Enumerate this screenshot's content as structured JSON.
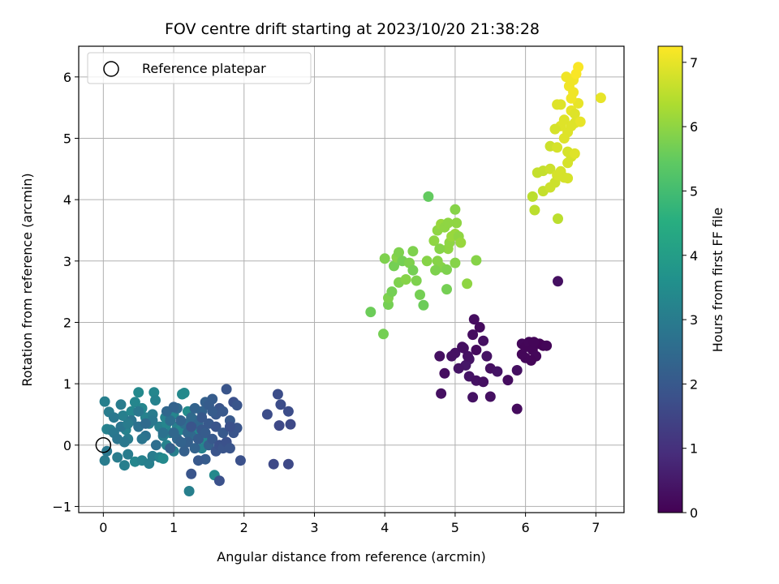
{
  "chart_data": {
    "type": "scatter",
    "title": "FOV centre drift starting at 2023/10/20 21:38:28",
    "xlabel": "Angular distance from reference (arcmin)",
    "ylabel": "Rotation from reference (arcmin)",
    "colorbar_label": "Hours from first FF file",
    "colormap": "viridis",
    "xlim": [
      -0.35,
      7.4
    ],
    "ylim": [
      -1.1,
      6.5
    ],
    "clim": [
      0,
      7.25
    ],
    "xticks": [
      0,
      1,
      2,
      3,
      4,
      5,
      6,
      7
    ],
    "yticks": [
      -1,
      0,
      1,
      2,
      3,
      4,
      5,
      6
    ],
    "cticks": [
      0,
      1,
      2,
      3,
      4,
      5,
      6,
      7
    ],
    "grid": true,
    "legend_position": "top-left",
    "legend": [
      {
        "label": "Reference platepar",
        "marker": "open-circle",
        "x": 0,
        "y": 0
      }
    ],
    "points": [
      [
        5.0,
        1.5,
        0.35
      ],
      [
        5.1,
        1.6,
        0.3
      ],
      [
        5.2,
        1.4,
        0.4
      ],
      [
        5.3,
        1.55,
        0.2
      ],
      [
        5.25,
        1.8,
        0.25
      ],
      [
        5.4,
        1.7,
        0.3
      ],
      [
        5.35,
        1.92,
        0.2
      ],
      [
        5.27,
        2.05,
        0.25
      ],
      [
        5.45,
        1.45,
        0.35
      ],
      [
        5.5,
        1.25,
        0.3
      ],
      [
        5.6,
        1.2,
        0.4
      ],
      [
        5.15,
        1.3,
        0.45
      ],
      [
        5.05,
        1.25,
        0.4
      ],
      [
        4.95,
        1.45,
        0.35
      ],
      [
        4.78,
        1.45,
        0.3
      ],
      [
        4.85,
        1.17,
        0.25
      ],
      [
        4.8,
        0.84,
        0.3
      ],
      [
        5.25,
        0.78,
        0.35
      ],
      [
        5.5,
        0.79,
        0.3
      ],
      [
        5.2,
        1.12,
        0.4
      ],
      [
        5.3,
        1.05,
        0.35
      ],
      [
        5.4,
        1.03,
        0.3
      ],
      [
        5.75,
        1.06,
        0.25
      ],
      [
        5.88,
        1.22,
        0.3
      ],
      [
        5.88,
        0.59,
        0.2
      ],
      [
        5.95,
        1.65,
        0.15
      ],
      [
        6.0,
        1.6,
        0.1
      ],
      [
        6.05,
        1.68,
        0.12
      ],
      [
        6.1,
        1.55,
        0.1
      ],
      [
        6.15,
        1.45,
        0.15
      ],
      [
        6.08,
        1.38,
        0.1
      ],
      [
        6.0,
        1.42,
        0.12
      ],
      [
        6.2,
        1.65,
        0.08
      ],
      [
        6.25,
        1.62,
        0.05
      ],
      [
        6.3,
        1.62,
        0.1
      ],
      [
        5.95,
        1.48,
        0.12
      ],
      [
        6.12,
        1.68,
        0.1
      ],
      [
        6.46,
        2.67,
        0.3
      ],
      [
        5.18,
        1.45,
        0.35
      ],
      [
        5.12,
        1.58,
        0.3
      ],
      [
        3.8,
        2.17,
        5.6
      ],
      [
        3.98,
        1.81,
        5.7
      ],
      [
        4.05,
        2.29,
        5.7
      ],
      [
        4.05,
        2.4,
        5.8
      ],
      [
        4.1,
        2.5,
        5.7
      ],
      [
        4.0,
        3.04,
        5.8
      ],
      [
        4.13,
        2.92,
        5.7
      ],
      [
        4.17,
        3.06,
        5.9
      ],
      [
        4.2,
        3.14,
        5.8
      ],
      [
        4.25,
        3.0,
        5.7
      ],
      [
        4.35,
        2.97,
        5.8
      ],
      [
        4.2,
        2.65,
        5.8
      ],
      [
        4.3,
        2.7,
        5.9
      ],
      [
        4.4,
        2.85,
        5.7
      ],
      [
        4.45,
        2.68,
        5.8
      ],
      [
        4.5,
        2.45,
        5.7
      ],
      [
        4.55,
        2.28,
        5.6
      ],
      [
        4.4,
        3.16,
        5.8
      ],
      [
        4.6,
        3.0,
        5.9
      ],
      [
        4.62,
        4.05,
        5.5
      ],
      [
        4.7,
        3.33,
        6.0
      ],
      [
        4.75,
        3.5,
        6.0
      ],
      [
        4.8,
        3.6,
        6.1
      ],
      [
        4.85,
        3.55,
        6.0
      ],
      [
        4.75,
        3.0,
        5.9
      ],
      [
        4.8,
        2.9,
        5.9
      ],
      [
        4.88,
        2.86,
        5.8
      ],
      [
        4.9,
        3.2,
        6.0
      ],
      [
        4.92,
        3.3,
        6.0
      ],
      [
        4.95,
        3.4,
        6.1
      ],
      [
        5.0,
        3.44,
        6.1
      ],
      [
        5.0,
        3.84,
        5.9
      ],
      [
        5.05,
        3.4,
        6.0
      ],
      [
        5.02,
        3.62,
        6.0
      ],
      [
        5.08,
        3.3,
        6.1
      ],
      [
        5.0,
        2.97,
        5.9
      ],
      [
        4.88,
        2.54,
        5.7
      ],
      [
        5.17,
        2.63,
        6.0
      ],
      [
        5.3,
        3.01,
        5.9
      ],
      [
        4.72,
        2.85,
        5.8
      ],
      [
        4.78,
        3.2,
        5.9
      ],
      [
        4.9,
        3.62,
        6.0
      ],
      [
        6.1,
        4.05,
        6.5
      ],
      [
        6.13,
        3.83,
        6.5
      ],
      [
        6.17,
        4.44,
        6.6
      ],
      [
        6.25,
        4.47,
        6.6
      ],
      [
        6.25,
        4.14,
        6.6
      ],
      [
        6.35,
        4.2,
        6.7
      ],
      [
        6.35,
        4.5,
        6.7
      ],
      [
        6.42,
        4.28,
        6.7
      ],
      [
        6.46,
        3.69,
        6.5
      ],
      [
        6.45,
        4.4,
        6.8
      ],
      [
        6.5,
        4.46,
        6.8
      ],
      [
        6.55,
        4.36,
        6.8
      ],
      [
        6.6,
        4.35,
        6.8
      ],
      [
        6.35,
        4.87,
        6.7
      ],
      [
        6.45,
        4.85,
        6.8
      ],
      [
        6.5,
        5.2,
        6.9
      ],
      [
        6.55,
        5.3,
        6.9
      ],
      [
        6.6,
        5.1,
        6.9
      ],
      [
        6.65,
        5.45,
        7.0
      ],
      [
        6.7,
        5.25,
        6.9
      ],
      [
        6.75,
        5.57,
        7.0
      ],
      [
        6.7,
        5.4,
        6.9
      ],
      [
        6.78,
        5.27,
        7.0
      ],
      [
        6.5,
        5.55,
        6.9
      ],
      [
        6.42,
        5.15,
        6.8
      ],
      [
        6.45,
        5.55,
        6.9
      ],
      [
        6.55,
        5.0,
        6.9
      ],
      [
        6.6,
        4.78,
        6.8
      ],
      [
        6.65,
        4.7,
        6.8
      ],
      [
        6.7,
        4.75,
        6.9
      ],
      [
        6.58,
        6.0,
        7.1
      ],
      [
        6.62,
        5.85,
        7.1
      ],
      [
        6.68,
        5.95,
        7.1
      ],
      [
        6.72,
        6.05,
        7.2
      ],
      [
        6.68,
        5.75,
        7.1
      ],
      [
        6.75,
        6.16,
        7.2
      ],
      [
        6.65,
        5.65,
        7.1
      ],
      [
        7.07,
        5.66,
        7.0
      ],
      [
        6.65,
        5.2,
        6.9
      ],
      [
        6.6,
        4.6,
        6.8
      ],
      [
        0.02,
        0.71,
        3.1
      ],
      [
        0.08,
        0.54,
        3.0
      ],
      [
        0.05,
        0.26,
        3.2
      ],
      [
        0.1,
        0.25,
        3.1
      ],
      [
        0.15,
        0.2,
        2.9
      ],
      [
        0.25,
        0.66,
        3.0
      ],
      [
        0.28,
        0.48,
        3.1
      ],
      [
        0.32,
        0.25,
        3.2
      ],
      [
        0.35,
        0.1,
        3.0
      ],
      [
        0.4,
        0.55,
        3.3
      ],
      [
        0.45,
        0.7,
        3.3
      ],
      [
        0.5,
        0.86,
        3.4
      ],
      [
        0.55,
        0.6,
        3.3
      ],
      [
        0.6,
        0.45,
        3.2
      ],
      [
        0.65,
        0.35,
        3.1
      ],
      [
        0.7,
        0.5,
        3.0
      ],
      [
        0.72,
        0.86,
        3.3
      ],
      [
        0.74,
        0.73,
        3.2
      ],
      [
        0.8,
        0.3,
        3.1
      ],
      [
        0.85,
        0.15,
        3.0
      ],
      [
        0.88,
        0.45,
        3.2
      ],
      [
        0.9,
        0.35,
        3.3
      ],
      [
        0.95,
        0.2,
        3.2
      ],
      [
        1.0,
        0.5,
        3.3
      ],
      [
        1.05,
        0.3,
        3.1
      ],
      [
        1.1,
        0.25,
        3.3
      ],
      [
        1.12,
        0.83,
        3.4
      ],
      [
        1.15,
        0.85,
        3.4
      ],
      [
        1.2,
        0.55,
        3.5
      ],
      [
        1.22,
        -0.75,
        3.1
      ],
      [
        1.3,
        0.4,
        3.2
      ],
      [
        1.35,
        0.2,
        3.3
      ],
      [
        1.4,
        -0.05,
        3.2
      ],
      [
        1.45,
        0.1,
        3.3
      ],
      [
        1.58,
        -0.49,
        3.4
      ],
      [
        0.02,
        -0.25,
        3.0
      ],
      [
        0.05,
        -0.1,
        2.9
      ],
      [
        0.2,
        -0.2,
        3.0
      ],
      [
        0.3,
        -0.33,
        3.1
      ],
      [
        0.35,
        -0.15,
        3.0
      ],
      [
        0.45,
        -0.27,
        3.3
      ],
      [
        0.55,
        -0.25,
        3.2
      ],
      [
        0.65,
        -0.3,
        3.1
      ],
      [
        0.7,
        -0.18,
        3.0
      ],
      [
        0.8,
        -0.2,
        3.2
      ],
      [
        0.85,
        -0.22,
        3.4
      ],
      [
        0.9,
        0.0,
        3.2
      ],
      [
        1.0,
        -0.1,
        3.1
      ],
      [
        0.2,
        0.1,
        2.8
      ],
      [
        0.25,
        0.3,
        2.8
      ],
      [
        0.4,
        0.4,
        2.8
      ],
      [
        0.5,
        0.3,
        2.7
      ],
      [
        0.6,
        0.15,
        2.7
      ],
      [
        0.75,
        0.0,
        2.6
      ],
      [
        0.85,
        0.2,
        2.7
      ],
      [
        0.95,
        0.4,
        2.6
      ],
      [
        1.05,
        0.6,
        2.5
      ],
      [
        1.15,
        0.35,
        2.6
      ],
      [
        1.25,
        0.15,
        2.5
      ],
      [
        0.3,
        0.05,
        2.9
      ],
      [
        0.5,
        0.55,
        2.9
      ],
      [
        0.7,
        0.4,
        2.9
      ],
      [
        0.15,
        0.45,
        2.9
      ],
      [
        0.35,
        0.35,
        3.0
      ],
      [
        0.55,
        0.1,
        2.8
      ],
      [
        0.6,
        0.35,
        2.5
      ],
      [
        0.9,
        0.55,
        2.4
      ],
      [
        1.0,
        0.62,
        2.3
      ],
      [
        1.05,
        0.1,
        2.4
      ],
      [
        1.1,
        0.4,
        2.3
      ],
      [
        1.2,
        0.2,
        2.4
      ],
      [
        1.25,
        0.45,
        2.5
      ],
      [
        1.3,
        0.6,
        2.3
      ],
      [
        1.35,
        0.35,
        2.4
      ],
      [
        1.4,
        0.55,
        2.3
      ],
      [
        1.45,
        0.7,
        2.2
      ],
      [
        1.5,
        0.65,
        2.1
      ],
      [
        1.55,
        0.75,
        2.1
      ],
      [
        1.6,
        0.5,
        2.0
      ],
      [
        1.65,
        0.6,
        1.9
      ],
      [
        1.7,
        0.55,
        2.0
      ],
      [
        1.75,
        0.91,
        1.9
      ],
      [
        1.8,
        0.4,
        2.0
      ],
      [
        1.85,
        0.2,
        1.9
      ],
      [
        1.9,
        0.28,
        1.9
      ],
      [
        1.2,
        0.05,
        2.2
      ],
      [
        1.3,
        -0.05,
        2.3
      ],
      [
        1.35,
        0.1,
        2.1
      ],
      [
        1.4,
        0.25,
        2.0
      ],
      [
        1.45,
        0.2,
        2.1
      ],
      [
        1.5,
        0.0,
        2.2
      ],
      [
        1.55,
        0.1,
        2.0
      ],
      [
        1.6,
        -0.1,
        1.9
      ],
      [
        1.65,
        0.0,
        1.8
      ],
      [
        1.7,
        -0.05,
        1.9
      ],
      [
        1.75,
        0.05,
        1.8
      ],
      [
        1.8,
        -0.05,
        1.9
      ],
      [
        1.85,
        0.7,
        1.8
      ],
      [
        1.9,
        0.65,
        1.9
      ],
      [
        1.95,
        -0.25,
        1.8
      ],
      [
        1.25,
        -0.47,
        1.9
      ],
      [
        1.45,
        -0.23,
        2.1
      ],
      [
        1.65,
        -0.58,
        1.8
      ],
      [
        1.35,
        -0.25,
        2.0
      ],
      [
        1.15,
        -0.1,
        2.2
      ],
      [
        1.1,
        0.05,
        2.3
      ],
      [
        1.0,
        0.2,
        2.4
      ],
      [
        0.95,
        -0.05,
        2.2
      ],
      [
        1.25,
        0.3,
        1.9
      ],
      [
        1.5,
        0.35,
        2.0
      ],
      [
        1.6,
        0.3,
        1.9
      ],
      [
        1.7,
        0.2,
        2.0
      ],
      [
        1.8,
        0.3,
        1.8
      ],
      [
        1.55,
        0.55,
        2.1
      ],
      [
        1.4,
        0.45,
        2.0
      ],
      [
        2.33,
        0.5,
        1.7
      ],
      [
        2.48,
        0.83,
        1.7
      ],
      [
        2.52,
        0.66,
        1.7
      ],
      [
        2.5,
        0.32,
        1.6
      ],
      [
        2.63,
        0.55,
        1.7
      ],
      [
        2.66,
        0.34,
        1.6
      ],
      [
        2.42,
        -0.31,
        1.6
      ],
      [
        2.63,
        -0.31,
        1.6
      ]
    ]
  }
}
